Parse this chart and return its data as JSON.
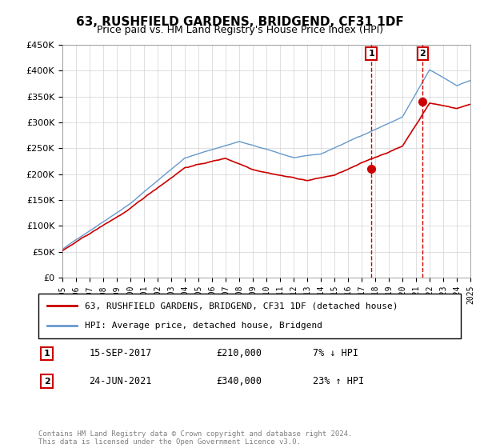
{
  "title": "63, RUSHFIELD GARDENS, BRIDGEND, CF31 1DF",
  "subtitle": "Price paid vs. HM Land Registry's House Price Index (HPI)",
  "legend_line1": "63, RUSHFIELD GARDENS, BRIDGEND, CF31 1DF (detached house)",
  "legend_line2": "HPI: Average price, detached house, Bridgend",
  "annotation1_label": "1",
  "annotation1_date": "15-SEP-2017",
  "annotation1_price": "£210,000",
  "annotation1_hpi": "7% ↓ HPI",
  "annotation2_label": "2",
  "annotation2_date": "24-JUN-2021",
  "annotation2_price": "£340,000",
  "annotation2_hpi": "23% ↑ HPI",
  "footer": "Contains HM Land Registry data © Crown copyright and database right 2024.\nThis data is licensed under the Open Government Licence v3.0.",
  "hpi_color": "#6699cc",
  "price_color": "#cc0000",
  "annotation_color": "#cc0000",
  "dashed_color": "#cc0000",
  "ylim": [
    0,
    450000
  ],
  "yticks": [
    0,
    50000,
    100000,
    150000,
    200000,
    250000,
    300000,
    350000,
    400000,
    450000
  ],
  "sale1_year": 2017.71,
  "sale1_price": 210000,
  "sale2_year": 2021.48,
  "sale2_price": 340000,
  "xmin": 1995,
  "xmax": 2025
}
